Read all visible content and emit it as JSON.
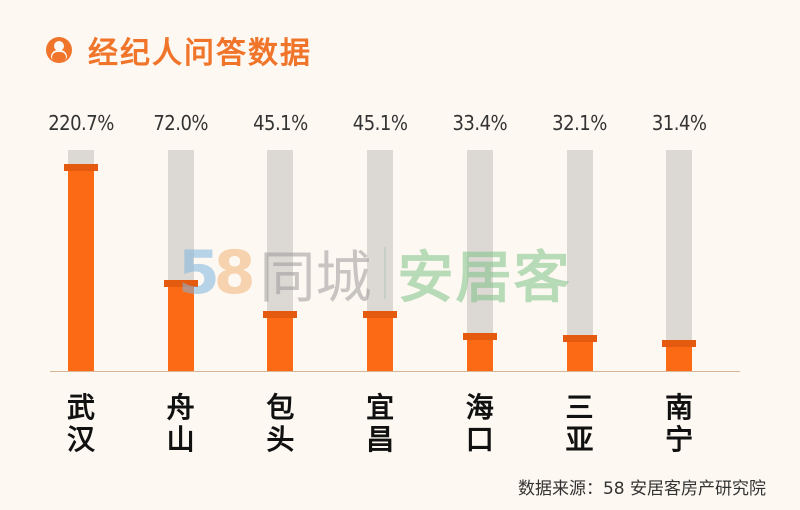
{
  "header": {
    "icon": "user-avatar-icon",
    "title": "经纪人问答数据"
  },
  "watermark": {
    "brand_number": "58",
    "brand_digit_1": "5",
    "brand_digit_2": "8",
    "brand_name": "同城",
    "product_name": "安居客"
  },
  "source": "数据来源：58 安居客房产研究院",
  "colors": {
    "accent": "#f0752a",
    "bar": "#fd6a16",
    "bar_cap": "#e45b10",
    "track": "#dcd8d4",
    "background": "#fdf8f2"
  },
  "chart_data": {
    "type": "bar",
    "title": "经纪人问答数据",
    "categories": [
      "武汉",
      "舟山",
      "包头",
      "宜昌",
      "海口",
      "三亚",
      "南宁"
    ],
    "values": [
      220.7,
      72.0,
      45.1,
      45.1,
      33.4,
      32.1,
      31.4
    ],
    "value_labels": [
      "220.7%",
      "72.0%",
      "45.1%",
      "45.1%",
      "33.4%",
      "32.1%",
      "31.4%"
    ],
    "unit": "%",
    "xlabel": "",
    "ylabel": "",
    "grid": false,
    "legend": null,
    "bars": [
      {
        "city_line1": "武",
        "city_line2": "汉",
        "label": "220.7%",
        "value": 220.7
      },
      {
        "city_line1": "舟",
        "city_line2": "山",
        "label": "72.0%",
        "value": 72.0
      },
      {
        "city_line1": "包",
        "city_line2": "头",
        "label": "45.1%",
        "value": 45.1
      },
      {
        "city_line1": "宜",
        "city_line2": "昌",
        "label": "45.1%",
        "value": 45.1
      },
      {
        "city_line1": "海",
        "city_line2": "口",
        "label": "33.4%",
        "value": 33.4
      },
      {
        "city_line1": "三",
        "city_line2": "亚",
        "label": "32.1%",
        "value": 32.1
      },
      {
        "city_line1": "南",
        "city_line2": "宁",
        "label": "31.4%",
        "value": 31.4
      }
    ],
    "source": "数据来源：58 安居客房产研究院"
  }
}
